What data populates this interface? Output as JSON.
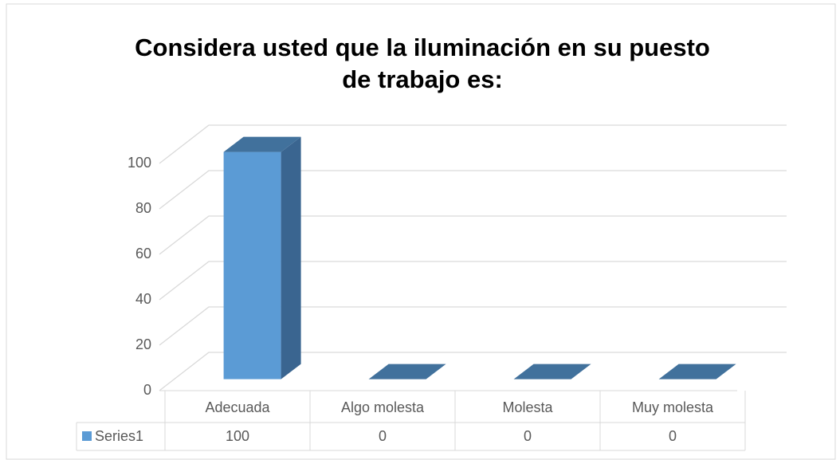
{
  "chart_data": {
    "type": "bar3d",
    "title": "Considera usted que la iluminación en su puesto de trabajo es:",
    "categories": [
      "Adecuada",
      "Algo molesta",
      "Molesta",
      "Muy molesta"
    ],
    "series": [
      {
        "name": "Series1",
        "color": "#5b9bd5",
        "values": [
          100,
          0,
          0,
          0
        ]
      }
    ],
    "ylim": [
      0,
      100
    ],
    "yticks": [
      0,
      20,
      40,
      60,
      80,
      100
    ],
    "grid": true,
    "data_table": true
  }
}
